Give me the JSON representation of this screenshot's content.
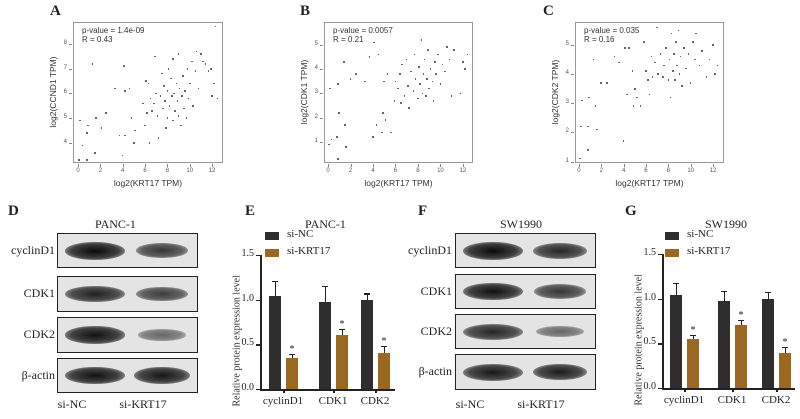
{
  "colors": {
    "si_NC": "#2e2e2e",
    "si_KRT17": "#9a6820"
  },
  "scatter_panels": [
    {
      "label": "A",
      "p_text": "p-value = 1.4e-09",
      "r_text": "R = 0.43",
      "xlabel": "log2(KRT17 TPM)",
      "ylabel": "log2(CCND1 TPM)",
      "xticks": [
        0,
        2,
        4,
        6,
        8,
        10,
        12
      ],
      "yticks": [
        4,
        5,
        6,
        7,
        8
      ],
      "xlim": [
        -0.45,
        12.98
      ],
      "ylim": [
        3.19,
        8.89
      ],
      "points": [
        [
          0.1,
          3.3
        ],
        [
          0.2,
          4.9
        ],
        [
          0.4,
          3.9
        ],
        [
          0.8,
          4.4
        ],
        [
          0.8,
          3.3
        ],
        [
          0.9,
          4.7
        ],
        [
          1.3,
          7.2
        ],
        [
          1.5,
          3.6
        ],
        [
          1.6,
          5.0
        ],
        [
          2.1,
          4.6
        ],
        [
          2.5,
          5.2
        ],
        [
          3.3,
          6.2
        ],
        [
          3.7,
          4.3
        ],
        [
          4.0,
          3.5
        ],
        [
          4.1,
          7.1
        ],
        [
          4.2,
          6.1
        ],
        [
          4.2,
          4.3
        ],
        [
          4.6,
          6.2
        ],
        [
          4.8,
          5.0
        ],
        [
          5.0,
          4.0
        ],
        [
          5.1,
          4.5
        ],
        [
          5.8,
          5.6
        ],
        [
          6.0,
          4.7
        ],
        [
          6.1,
          6.5
        ],
        [
          6.2,
          5.2
        ],
        [
          6.3,
          6.4
        ],
        [
          6.4,
          4.0
        ],
        [
          6.5,
          5.8
        ],
        [
          6.6,
          5.3
        ],
        [
          6.8,
          5.6
        ],
        [
          6.9,
          7.5
        ],
        [
          7.0,
          6.0
        ],
        [
          7.1,
          5.1
        ],
        [
          7.2,
          4.2
        ],
        [
          7.4,
          5.9
        ],
        [
          7.5,
          6.8
        ],
        [
          7.6,
          5.4
        ],
        [
          7.7,
          6.3
        ],
        [
          7.8,
          5.7
        ],
        [
          7.9,
          4.6
        ],
        [
          8.0,
          6.1
        ],
        [
          8.0,
          5.0
        ],
        [
          8.1,
          7.0
        ],
        [
          8.2,
          5.5
        ],
        [
          8.3,
          6.6
        ],
        [
          8.4,
          5.9
        ],
        [
          8.5,
          7.4
        ],
        [
          8.5,
          4.9
        ],
        [
          8.6,
          6.0
        ],
        [
          8.7,
          5.3
        ],
        [
          8.8,
          6.4
        ],
        [
          8.9,
          5.7
        ],
        [
          9.0,
          7.6
        ],
        [
          9.0,
          5.1
        ],
        [
          9.1,
          6.2
        ],
        [
          9.2,
          4.7
        ],
        [
          9.3,
          5.9
        ],
        [
          9.4,
          6.7
        ],
        [
          9.5,
          5.4
        ],
        [
          9.6,
          6.1
        ],
        [
          9.7,
          5.0
        ],
        [
          9.8,
          7.0
        ],
        [
          9.9,
          5.8
        ],
        [
          10.0,
          6.4
        ],
        [
          10.2,
          7.3
        ],
        [
          10.3,
          5.5
        ],
        [
          10.5,
          6.9
        ],
        [
          10.6,
          7.7
        ],
        [
          10.8,
          6.2
        ],
        [
          11.0,
          7.6
        ],
        [
          11.2,
          7.3
        ],
        [
          11.4,
          7.2
        ],
        [
          11.7,
          6.9
        ],
        [
          11.9,
          7.0
        ],
        [
          12.0,
          5.9
        ],
        [
          12.2,
          6.4
        ],
        [
          12.3,
          8.7
        ],
        [
          12.5,
          5.8
        ]
      ]
    },
    {
      "label": "B",
      "p_text": "p-value = 0.0057",
      "r_text": "R = 0.21",
      "xlabel": "log2(KRT17 TPM)",
      "ylabel": "log2(CDK1 TPM)",
      "xticks": [
        0,
        2,
        4,
        6,
        8,
        10,
        12
      ],
      "yticks": [
        1,
        2,
        3,
        4,
        5
      ],
      "xlim": [
        -0.36,
        12.9
      ],
      "ylim": [
        0.14,
        5.94
      ],
      "points": [
        [
          0.1,
          0.9
        ],
        [
          0.2,
          3.2
        ],
        [
          0.3,
          1.1
        ],
        [
          0.8,
          1.2
        ],
        [
          0.9,
          0.3
        ],
        [
          0.9,
          3.4
        ],
        [
          1.0,
          2.2
        ],
        [
          1.4,
          4.3
        ],
        [
          1.5,
          1.7
        ],
        [
          1.6,
          0.8
        ],
        [
          2.0,
          3.6
        ],
        [
          2.5,
          3.8
        ],
        [
          3.3,
          3.5
        ],
        [
          3.7,
          4.5
        ],
        [
          4.0,
          1.2
        ],
        [
          4.1,
          5.1
        ],
        [
          4.3,
          1.7
        ],
        [
          4.5,
          4.6
        ],
        [
          4.8,
          1.4
        ],
        [
          4.9,
          2.2
        ],
        [
          5.0,
          3.5
        ],
        [
          5.1,
          1.9
        ],
        [
          5.3,
          3.8
        ],
        [
          5.6,
          1.4
        ],
        [
          5.9,
          2.7
        ],
        [
          6.0,
          3.5
        ],
        [
          6.2,
          3.2
        ],
        [
          6.4,
          3.8
        ],
        [
          6.5,
          2.6
        ],
        [
          6.6,
          4.2
        ],
        [
          6.8,
          2.9
        ],
        [
          7.0,
          4.4
        ],
        [
          7.1,
          3.3
        ],
        [
          7.2,
          2.4
        ],
        [
          7.4,
          3.9
        ],
        [
          7.6,
          3.1
        ],
        [
          7.7,
          4.6
        ],
        [
          7.8,
          3.6
        ],
        [
          8.0,
          2.8
        ],
        [
          8.1,
          4.1
        ],
        [
          8.2,
          3.4
        ],
        [
          8.3,
          5.2
        ],
        [
          8.4,
          3.0
        ],
        [
          8.5,
          3.8
        ],
        [
          8.6,
          4.4
        ],
        [
          8.7,
          2.9
        ],
        [
          8.8,
          3.6
        ],
        [
          8.9,
          4.8
        ],
        [
          9.0,
          3.2
        ],
        [
          9.1,
          4.0
        ],
        [
          9.3,
          3.5
        ],
        [
          9.4,
          2.7
        ],
        [
          9.5,
          4.3
        ],
        [
          9.6,
          3.8
        ],
        [
          9.8,
          4.6
        ],
        [
          10.0,
          3.4
        ],
        [
          10.2,
          4.2
        ],
        [
          10.4,
          3.9
        ],
        [
          10.6,
          4.9
        ],
        [
          10.8,
          4.4
        ],
        [
          11.0,
          2.9
        ],
        [
          11.2,
          4.8
        ],
        [
          11.8,
          3.0
        ],
        [
          12.0,
          4.3
        ],
        [
          12.2,
          4.0
        ],
        [
          12.4,
          4.6
        ]
      ]
    },
    {
      "label": "C",
      "p_text": "p-value = 0.035",
      "r_text": "R = 0.16",
      "xlabel": "log2(KRT17 TPM)",
      "ylabel": "log2(CDK2 TPM)",
      "xticks": [
        0,
        2,
        4,
        6,
        8,
        10,
        12
      ],
      "yticks": [
        1,
        2,
        3,
        4,
        5
      ],
      "xlim": [
        -0.35,
        12.98
      ],
      "ylim": [
        0.95,
        5.79
      ],
      "points": [
        [
          0.1,
          1.1
        ],
        [
          0.2,
          2.2
        ],
        [
          0.3,
          3.1
        ],
        [
          0.8,
          2.2
        ],
        [
          0.8,
          1.4
        ],
        [
          0.9,
          3.2
        ],
        [
          1.3,
          4.5
        ],
        [
          1.5,
          2.9
        ],
        [
          1.6,
          2.1
        ],
        [
          2.0,
          3.7
        ],
        [
          2.5,
          3.7
        ],
        [
          3.2,
          4.6
        ],
        [
          3.6,
          4.4
        ],
        [
          4.0,
          1.7
        ],
        [
          4.1,
          4.9
        ],
        [
          4.3,
          3.3
        ],
        [
          4.5,
          4.9
        ],
        [
          4.8,
          4.1
        ],
        [
          4.9,
          2.9
        ],
        [
          5.0,
          3.5
        ],
        [
          5.2,
          3.2
        ],
        [
          5.5,
          2.9
        ],
        [
          5.8,
          5.1
        ],
        [
          6.0,
          4.1
        ],
        [
          6.2,
          3.8
        ],
        [
          6.3,
          3.3
        ],
        [
          6.5,
          4.6
        ],
        [
          6.6,
          3.9
        ],
        [
          6.8,
          4.4
        ],
        [
          7.0,
          5.6
        ],
        [
          7.1,
          4.0
        ],
        [
          7.3,
          4.7
        ],
        [
          7.5,
          3.9
        ],
        [
          7.6,
          4.3
        ],
        [
          7.8,
          4.9
        ],
        [
          8.0,
          3.8
        ],
        [
          8.1,
          4.5
        ],
        [
          8.2,
          3.2
        ],
        [
          8.3,
          5.4
        ],
        [
          8.4,
          4.1
        ],
        [
          8.5,
          4.7
        ],
        [
          8.6,
          3.8
        ],
        [
          8.7,
          5.1
        ],
        [
          8.8,
          4.3
        ],
        [
          8.9,
          5.5
        ],
        [
          9.0,
          4.0
        ],
        [
          9.1,
          4.6
        ],
        [
          9.2,
          3.6
        ],
        [
          9.4,
          4.9
        ],
        [
          9.6,
          4.2
        ],
        [
          9.8,
          4.7
        ],
        [
          10.0,
          3.7
        ],
        [
          10.2,
          5.1
        ],
        [
          10.4,
          4.5
        ],
        [
          10.5,
          5.4
        ],
        [
          10.8,
          4.3
        ],
        [
          11.0,
          4.8
        ],
        [
          11.4,
          3.9
        ],
        [
          11.7,
          4.5
        ],
        [
          12.0,
          5.0
        ],
        [
          12.2,
          4.0
        ],
        [
          12.4,
          4.3
        ]
      ]
    }
  ],
  "blot_panels": [
    {
      "label": "D",
      "cell_line": "PANC-1",
      "lanes": [
        "si-NC",
        "si-KRT17"
      ],
      "rows": [
        {
          "name": "cyclinD1",
          "intensity": [
            1.0,
            0.7
          ]
        },
        {
          "name": "CDK1",
          "intensity": [
            0.85,
            0.65
          ]
        },
        {
          "name": "CDK2",
          "intensity": [
            0.95,
            0.35
          ]
        },
        {
          "name": "β-actin",
          "intensity": [
            0.95,
            0.92
          ]
        }
      ]
    },
    {
      "label": "F",
      "cell_line": "SW1990",
      "lanes": [
        "si-NC",
        "si-KRT17"
      ],
      "rows": [
        {
          "name": "cyclinD1",
          "intensity": [
            1.0,
            0.8
          ]
        },
        {
          "name": "CDK1",
          "intensity": [
            0.95,
            0.7
          ]
        },
        {
          "name": "CDK2",
          "intensity": [
            0.8,
            0.35
          ]
        },
        {
          "name": "β-actin",
          "intensity": [
            0.9,
            0.88
          ]
        }
      ]
    }
  ],
  "chart_data": [
    {
      "type": "bar",
      "label": "E",
      "title": "PANC-1",
      "ylabel": "Relative protein expression level",
      "categories": [
        "cyclinD1",
        "CDK1",
        "CDK2"
      ],
      "ylim": [
        0,
        1.5
      ],
      "yticks": [
        "0.0",
        "0.5",
        "1.0",
        "1.5"
      ],
      "legend": "top-left",
      "series": [
        {
          "name": "si-NC",
          "values": [
            1.04,
            0.97,
            1.0
          ],
          "errors": [
            0.17,
            0.18,
            0.07
          ]
        },
        {
          "name": "si-KRT17",
          "values": [
            0.35,
            0.6,
            0.4
          ],
          "errors": [
            0.04,
            0.07,
            0.08
          ],
          "significance": [
            "*",
            "*",
            "*"
          ]
        }
      ]
    },
    {
      "type": "bar",
      "label": "G",
      "title": "SW1990",
      "ylabel": "Relative protein expression level",
      "categories": [
        "cyclinD1",
        "CDK1",
        "CDK2"
      ],
      "ylim": [
        0,
        1.5
      ],
      "yticks": [
        "0.0",
        "0.5",
        "1.0",
        "1.5"
      ],
      "legend": "top-left",
      "series": [
        {
          "name": "si-NC",
          "values": [
            1.04,
            0.97,
            1.0
          ],
          "errors": [
            0.14,
            0.12,
            0.08
          ]
        },
        {
          "name": "si-KRT17",
          "values": [
            0.55,
            0.7,
            0.39
          ],
          "errors": [
            0.04,
            0.06,
            0.07
          ],
          "significance": [
            "*",
            "*",
            "*"
          ]
        }
      ]
    }
  ]
}
